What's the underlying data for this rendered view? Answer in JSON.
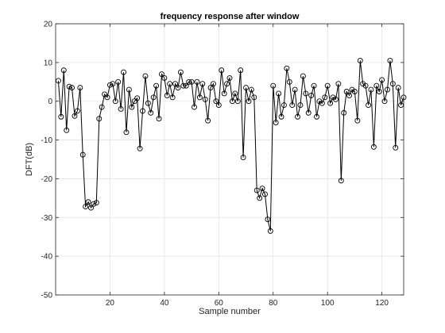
{
  "chart_data": {
    "type": "line",
    "title": "frequency response after window",
    "xlabel": "Sample number",
    "ylabel": "DFT(dB)",
    "xlim": [
      0,
      128
    ],
    "ylim": [
      -50,
      20
    ],
    "xticks": [
      20,
      40,
      60,
      80,
      100,
      120
    ],
    "yticks": [
      20,
      10,
      0,
      -10,
      -20,
      -30,
      -40,
      -50
    ],
    "grid": true,
    "legend": "none",
    "series": [
      {
        "style": "black line with open circle markers",
        "x": [
          1,
          2,
          3,
          4,
          5,
          6,
          7,
          8,
          9,
          10,
          11,
          12,
          13,
          14,
          15,
          16,
          17,
          18,
          19,
          20,
          21,
          22,
          23,
          24,
          25,
          26,
          27,
          28,
          29,
          30,
          31,
          32,
          33,
          34,
          35,
          36,
          37,
          38,
          39,
          40,
          41,
          42,
          43,
          44,
          45,
          46,
          47,
          48,
          49,
          50,
          51,
          52,
          53,
          54,
          55,
          56,
          57,
          58,
          59,
          60,
          61,
          62,
          63,
          64,
          65,
          66,
          67,
          68,
          69,
          70,
          71,
          72,
          73,
          74,
          75,
          76,
          77,
          78,
          79,
          80,
          81,
          82,
          83,
          84,
          85,
          86,
          87,
          88,
          89,
          90,
          91,
          92,
          93,
          94,
          95,
          96,
          97,
          98,
          99,
          100,
          101,
          102,
          103,
          104,
          105,
          106,
          107,
          108,
          109,
          110,
          111,
          112,
          113,
          114,
          115,
          116,
          117,
          118,
          119,
          120,
          121,
          122,
          123,
          124,
          125,
          126,
          127,
          128
        ],
        "y": [
          5.3,
          -4.0,
          8.0,
          -7.5,
          3.8,
          3.5,
          -3.8,
          -2.5,
          3.5,
          -13.8,
          -27.2,
          -26.0,
          -27.5,
          -26.5,
          -26.2,
          -4.5,
          -1.5,
          1.8,
          1.0,
          4.2,
          4.5,
          0.0,
          5.0,
          -2.0,
          7.5,
          -8.0,
          3.0,
          -1.5,
          0.0,
          0.8,
          -12.2,
          -2.5,
          6.5,
          -0.5,
          -3.0,
          1.0,
          4.0,
          -4.5,
          7.0,
          6.0,
          1.5,
          4.5,
          1.0,
          4.5,
          3.5,
          7.5,
          4.0,
          4.0,
          5.0,
          5.0,
          -1.5,
          5.0,
          1.0,
          4.5,
          0.5,
          -5.0,
          3.5,
          4.5,
          0.0,
          -1.0,
          8.0,
          2.0,
          4.5,
          6.0,
          0.0,
          2.0,
          0.0,
          8.0,
          -14.5,
          3.5,
          0.0,
          3.0,
          1.0,
          -23.0,
          -25.0,
          -22.5,
          -24.0,
          -30.5,
          -33.5,
          4.0,
          -5.5,
          2.0,
          -4.0,
          -1.0,
          8.5,
          5.0,
          -1.0,
          3.0,
          -4.0,
          -1.0,
          6.5,
          2.0,
          -3.0,
          1.5,
          4.0,
          -4.0,
          0.0,
          -0.5,
          1.0,
          4.0,
          -0.5,
          1.0,
          0.5,
          4.5,
          -20.5,
          -3.0,
          2.5,
          1.5,
          3.0,
          2.5,
          -5.0,
          10.5,
          4.5,
          4.0,
          -1.0,
          3.0,
          -11.8,
          4.0,
          2.5,
          5.5,
          0.0,
          3.0,
          10.5,
          4.5,
          -12.0,
          3.5,
          -1.0,
          1.0
        ]
      }
    ]
  }
}
